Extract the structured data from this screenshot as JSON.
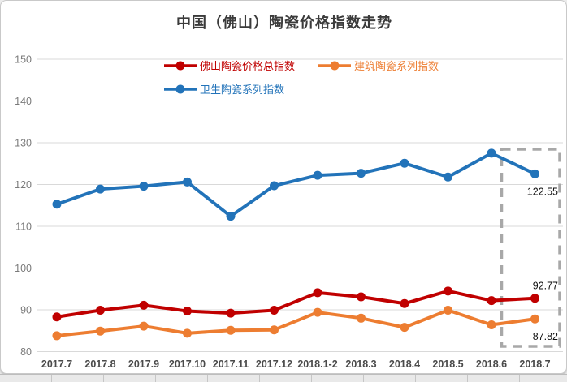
{
  "title": "中国（佛山）陶瓷价格指数走势",
  "chart_data": {
    "type": "line",
    "title": "中国（佛山）陶瓷价格指数走势",
    "categories": [
      "2017.7",
      "2017.8",
      "2017.9",
      "2017.10",
      "2017.11",
      "2017.12",
      "2018.1-2",
      "2018.3",
      "2018.4",
      "2018.5",
      "2018.6",
      "2018.7"
    ],
    "series": [
      {
        "name": "佛山陶瓷价格总指数",
        "color": "#c00000",
        "values": [
          88.3,
          89.9,
          91.1,
          89.7,
          89.2,
          89.9,
          94.1,
          93.1,
          91.5,
          94.5,
          92.2,
          92.77
        ]
      },
      {
        "name": "建筑陶瓷系列指数",
        "color": "#ed7d31",
        "values": [
          83.8,
          84.9,
          86.1,
          84.4,
          85.1,
          85.2,
          89.4,
          88.0,
          85.8,
          89.9,
          86.4,
          87.82
        ]
      },
      {
        "name": "卫生陶瓷系列指数",
        "color": "#2273b9",
        "values": [
          115.3,
          118.9,
          119.6,
          120.6,
          112.4,
          119.7,
          122.2,
          122.7,
          125.1,
          121.8,
          127.5,
          122.55
        ]
      }
    ],
    "ylim": [
      80,
      150
    ],
    "y_ticks": [
      80,
      90,
      100,
      110,
      120,
      130,
      140,
      150
    ],
    "grid": true,
    "legend_position": "top-center",
    "end_labels": [
      {
        "series_index": 2,
        "text": "122.55",
        "placement": "below"
      },
      {
        "series_index": 0,
        "text": "92.77",
        "placement": "above"
      },
      {
        "series_index": 1,
        "text": "87.82",
        "placement": "below"
      }
    ],
    "highlight_box": {
      "categories": [
        "2018.6",
        "2018.7"
      ],
      "style": "gray-dashed"
    }
  },
  "colors": {
    "grid": "#d9d9d9",
    "axis_text": "#7a7a7a",
    "x_axis_text": "#4a4a4a",
    "title_text": "#3b3b3b",
    "highlight_box": "#a8a8a8",
    "data_label_text": "#111111"
  }
}
